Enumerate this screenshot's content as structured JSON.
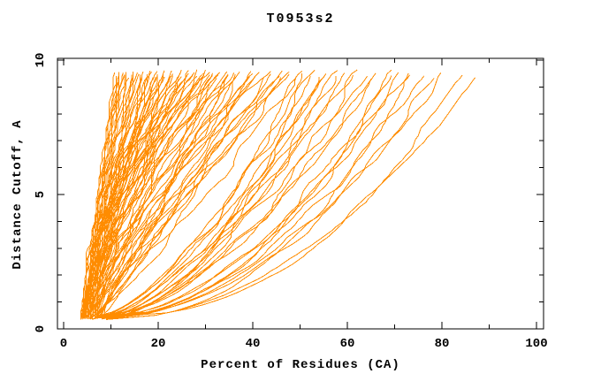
{
  "chart_data": {
    "type": "line",
    "title": "T0953s2",
    "xlabel": "Percent of Residues (CA)",
    "ylabel": "Distance Cutoff, A",
    "xlim": [
      0,
      100
    ],
    "ylim": [
      0,
      10
    ],
    "x_major_ticks": [
      0,
      20,
      40,
      60,
      80,
      100
    ],
    "x_minor_ticks": [
      10,
      30,
      50,
      70,
      90
    ],
    "y_major_ticks": [
      0,
      5,
      10
    ],
    "y_minor_ticks": [
      1,
      2,
      3,
      4,
      6,
      7,
      8,
      9
    ],
    "grid": false,
    "legend": "none",
    "frame": "full-box-mirrored-inward-ticks",
    "line_color": "#ff8c00",
    "axis_color": "#000000",
    "background_color": "#ffffff",
    "series_count": 105,
    "series_description": "Each orange curve is one predicted model: percent of CA residues fitting under each distance cutoff (cutoffs ~0.4 to ~9.6 A). Values below are per-curve percent at lowest cutoff, percent at highest cutoff, and shape exponent of the monotone rise.",
    "curves": {
      "cutoff_start_range": [
        0.35,
        0.5
      ],
      "cutoff_end_range": [
        9.4,
        9.7
      ],
      "start_percent": [
        9,
        8,
        9.5,
        7.5,
        8.5,
        9,
        10,
        8,
        9.5,
        7,
        8,
        6.5,
        9,
        7,
        8.5,
        6,
        9.5,
        7.5,
        8,
        6.5,
        9,
        7,
        8.5,
        6,
        7.5,
        5.5,
        7,
        4.5,
        8,
        6,
        7.5,
        5,
        8.5,
        6.5,
        4.5,
        7,
        5.5,
        8,
        6,
        4.8,
        7.2,
        5.8,
        6.8,
        5.2,
        7.8,
        4,
        6,
        5,
        7,
        4.5,
        6.5,
        5.5,
        7.5,
        4.2,
        6.2,
        5.2,
        7.2,
        4.6,
        6.6,
        5.6,
        3.8,
        4.8,
        6.8,
        5.8,
        4.4,
        6.4,
        5.4,
        7.4,
        4.1,
        6.1,
        5.1,
        7.1,
        4.7,
        6.7,
        5.7,
        3.9,
        4.9,
        6.9,
        5.9,
        4.3,
        3.5,
        4.5,
        4,
        5,
        3.8,
        4.8,
        4.2,
        5.2,
        3.6,
        4.6,
        4.4,
        5.4,
        3.7,
        4.7,
        4.1,
        5.1,
        3.9,
        4.9,
        4.3,
        5.3,
        3.5,
        4.5,
        4,
        5,
        4.2
      ],
      "end_percent": [
        87.5,
        84,
        81,
        78.5,
        76,
        74,
        72.5,
        71,
        70,
        69,
        67,
        65.5,
        64,
        62.5,
        61,
        59.5,
        58,
        57,
        56,
        55,
        54,
        53,
        52,
        51,
        50,
        49.5,
        48.7,
        47.8,
        47,
        46.2,
        45.3,
        44.5,
        43.6,
        42.8,
        42,
        41.2,
        40.4,
        39.6,
        38.8,
        38,
        37.2,
        36.5,
        36,
        35.5,
        35,
        34.6,
        34.1,
        33.7,
        33.2,
        32.8,
        32.3,
        31.9,
        31.4,
        31,
        30.5,
        30.1,
        29.6,
        29.2,
        28.7,
        28.3,
        27.8,
        27.4,
        26.9,
        26.5,
        26,
        25.6,
        25.1,
        24.7,
        24.2,
        23.8,
        23.3,
        22.9,
        22.4,
        22,
        21.5,
        21.1,
        20.8,
        20.5,
        20.2,
        20,
        19.6,
        19.2,
        18.8,
        18.4,
        18,
        17.6,
        17.2,
        16.8,
        16.4,
        16,
        15.6,
        15.2,
        14.8,
        14.4,
        14,
        13.6,
        13.2,
        12.8,
        12.4,
        12,
        11.7,
        11.5,
        11.3,
        11.1,
        11
      ],
      "shape_exponent": [
        0.5,
        0.42,
        0.55,
        0.47,
        0.52,
        0.44,
        0.58,
        0.49,
        0.53,
        0.46,
        0.62,
        0.55,
        0.68,
        0.51,
        0.72,
        0.58,
        0.65,
        0.53,
        0.7,
        0.6,
        0.56,
        0.66,
        0.52,
        0.63,
        0.57,
        0.85,
        1.1,
        0.95,
        1.3,
        0.88,
        1.2,
        1.0,
        1.45,
        0.92,
        1.15,
        1.05,
        1.35,
        0.9,
        1.25,
        0.98,
        1.4,
        1.08,
        0.94,
        1.18,
        1.02,
        1.1,
        1.6,
        1.25,
        1.9,
        1.4,
        1.15,
        1.75,
        1.3,
        2.0,
        1.45,
        1.2,
        1.85,
        1.35,
        1.55,
        1.12,
        1.95,
        1.5,
        1.28,
        1.7,
        1.38,
        2.1,
        1.48,
        1.22,
        1.8,
        1.42,
        1.18,
        1.65,
        1.32,
        2.05,
        1.52,
        1.26,
        1.88,
        1.36,
        1.58,
        1.24,
        1.0,
        1.3,
        1.1,
        1.45,
        1.05,
        1.25,
        1.15,
        1.5,
        0.95,
        1.35,
        1.2,
        1.4,
        1.02,
        1.28,
        1.12,
        1.48,
        0.98,
        1.32,
        1.08,
        1.42,
        1.06,
        1.22,
        1.16,
        1.38,
        1.04
      ]
    }
  }
}
